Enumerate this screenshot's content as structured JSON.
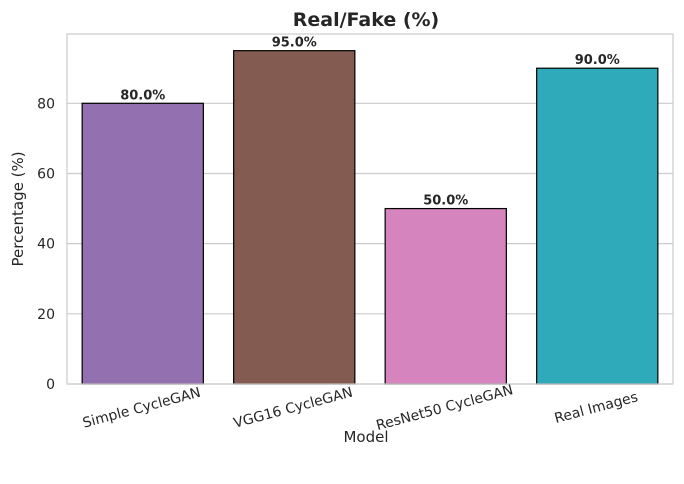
{
  "chart_data": {
    "type": "bar",
    "title": "Real/Fake (%)",
    "xlabel": "Model",
    "ylabel": "Percentage (%)",
    "categories": [
      "Simple CycleGAN",
      "VGG16 CycleGAN",
      "ResNet50 CycleGAN",
      "Real Images"
    ],
    "values": [
      80.0,
      95.0,
      50.0,
      90.0
    ],
    "data_labels": [
      "80.0%",
      "95.0%",
      "50.0%",
      "90.0%"
    ],
    "colors": [
      "#9370b0",
      "#835b50",
      "#d684bd",
      "#2eaabb"
    ],
    "yticks": [
      0,
      20,
      40,
      60,
      80
    ],
    "ylim": [
      0,
      99.75
    ],
    "grid": "horizontal",
    "xtick_rotation_deg": -15
  }
}
